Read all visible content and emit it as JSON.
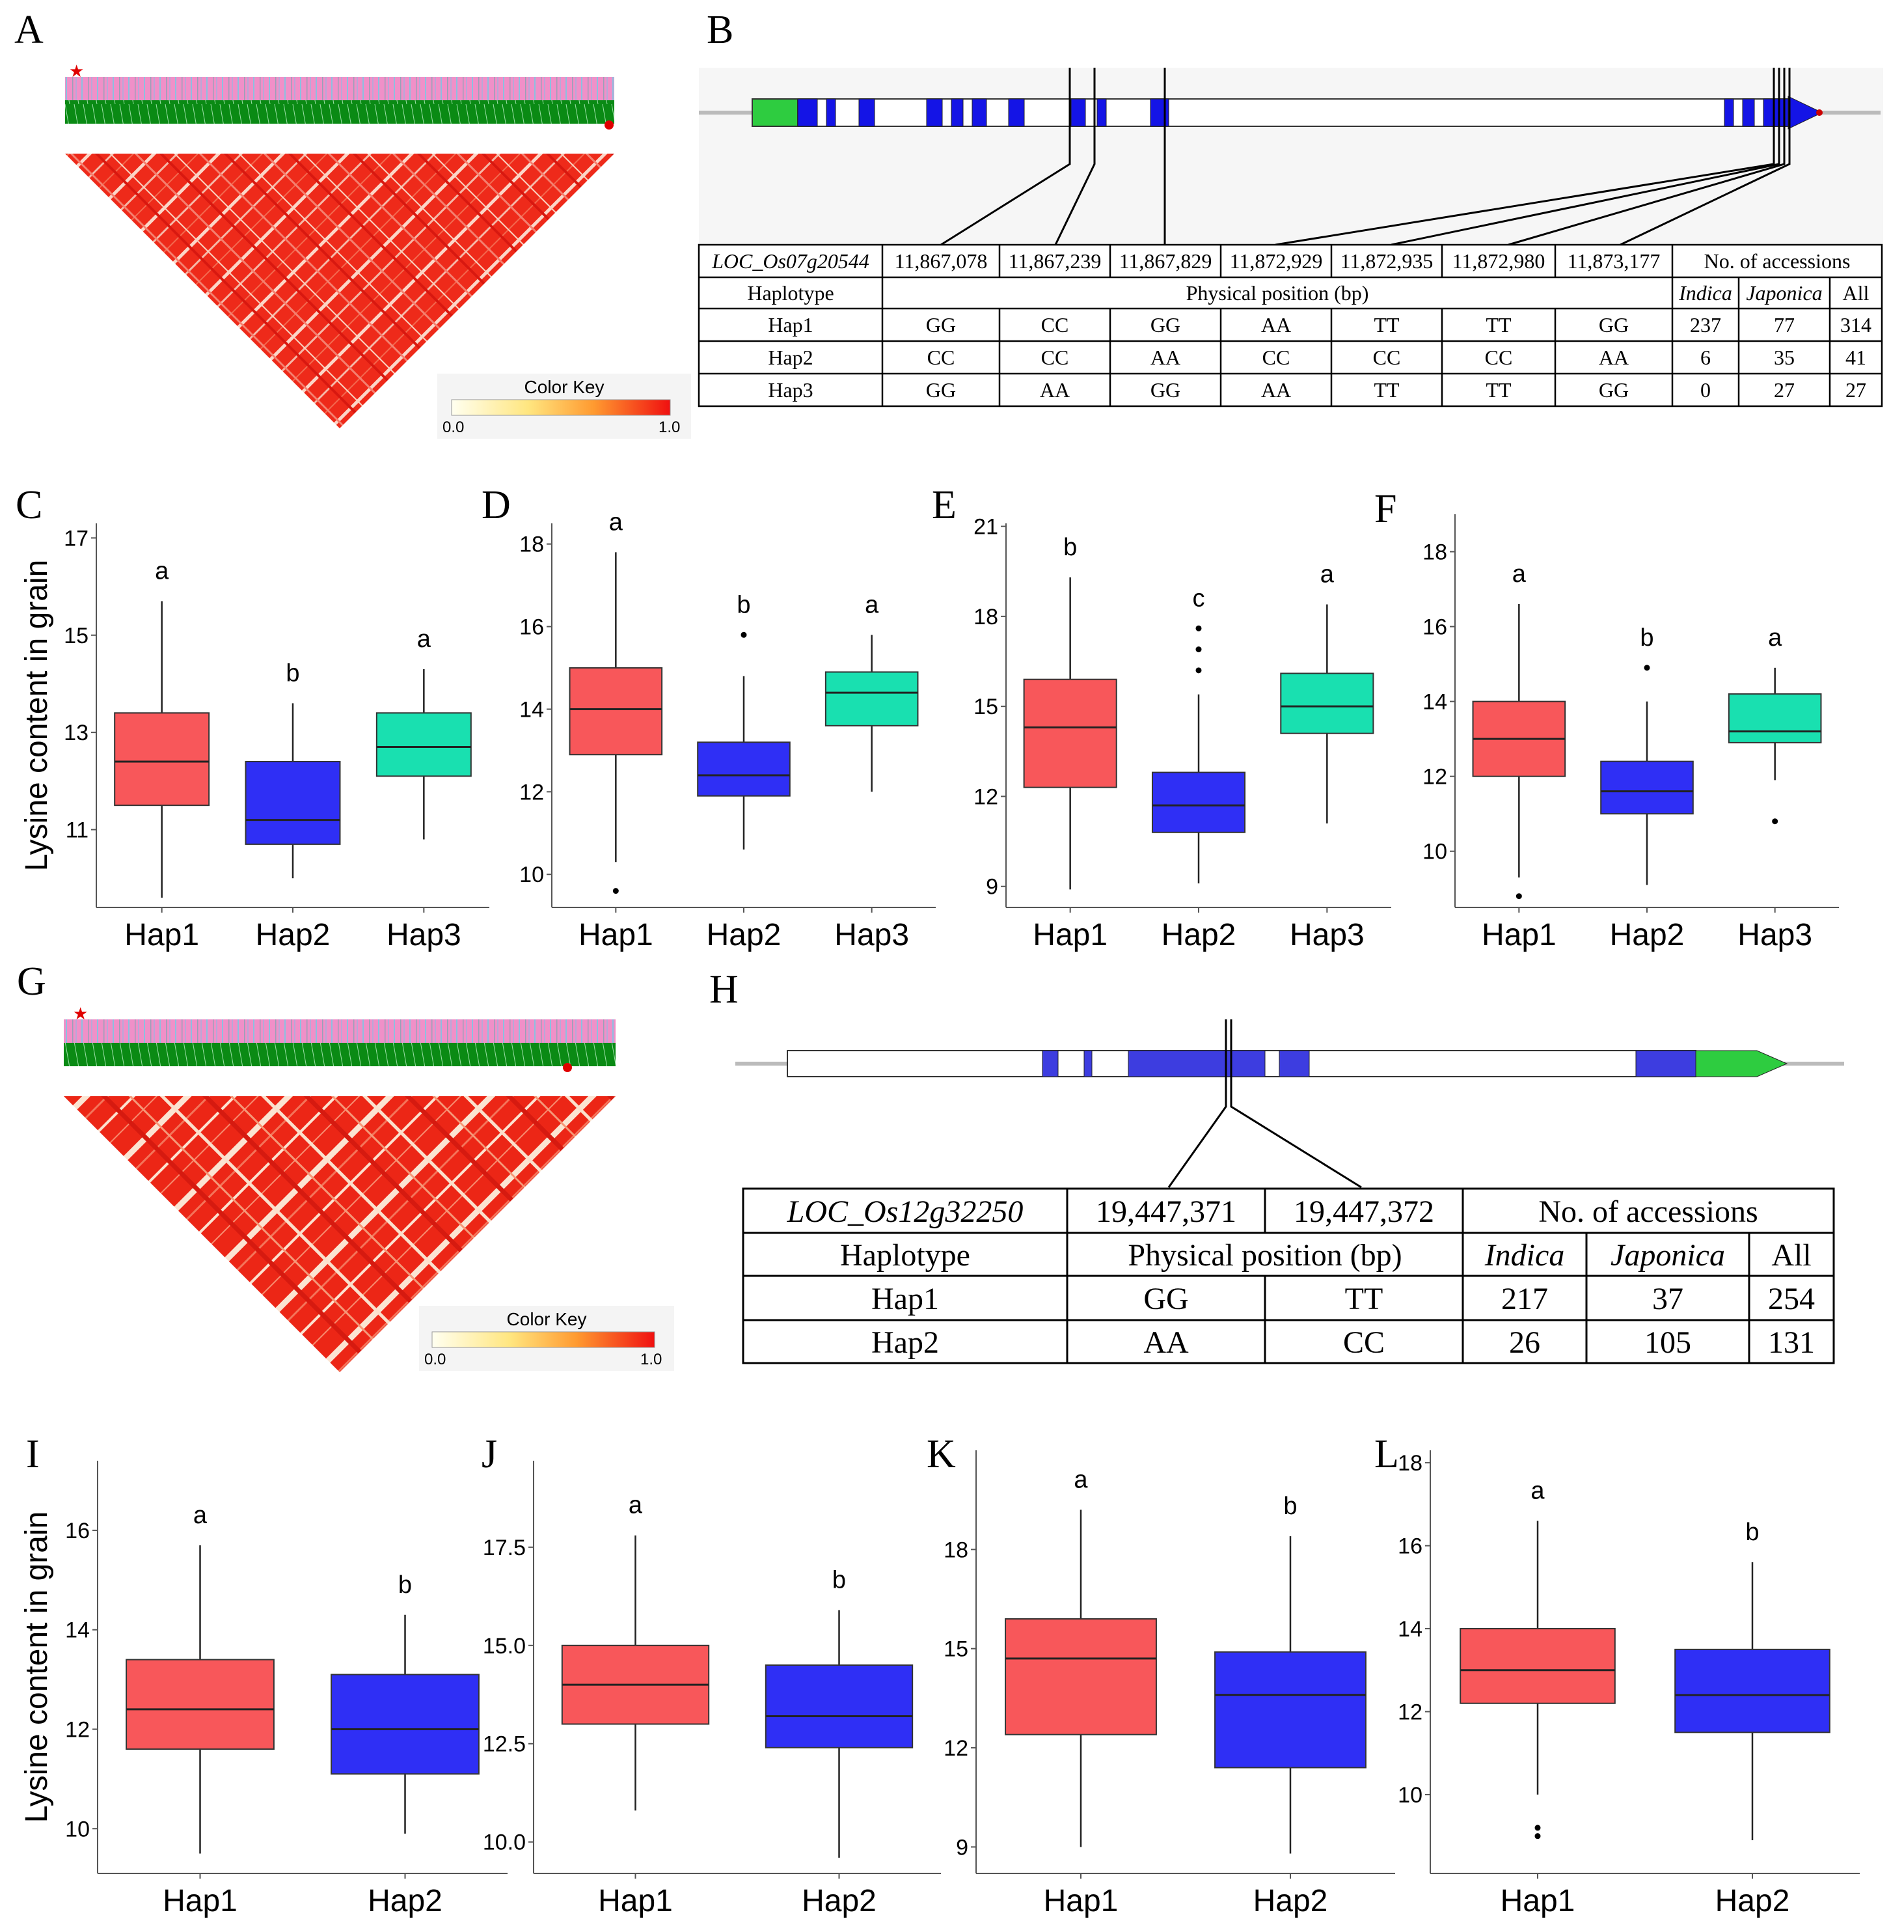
{
  "ylabel": "Lysine content in grain",
  "colors": {
    "hap1": "#F8575A",
    "hap2": "#2F2FF5",
    "hap3": "#19E0B0",
    "ld_red": "#F02818",
    "ld_pink": "#F08CC8",
    "ld_green": "#0A8A14",
    "exon_blue": "#1414E6",
    "utr_green": "#2ECC40"
  },
  "panel_A": {
    "label": "A",
    "color_key": {
      "title": "Color Key",
      "min": "0.0",
      "max": "1.0"
    }
  },
  "panel_G": {
    "label": "G",
    "color_key": {
      "title": "Color Key",
      "min": "0.0",
      "max": "1.0"
    }
  },
  "panel_B": {
    "label": "B",
    "gene": "LOC_Os07g20544",
    "positions": [
      "11,867,078",
      "11,867,239",
      "11,867,829",
      "11,872,929",
      "11,872,935",
      "11,872,980",
      "11,873,177"
    ],
    "header_haplotype": "Haplotype",
    "header_position": "Physical position (bp)",
    "header_accessions": "No. of accessions",
    "header_indica": "Indica",
    "header_japonica": "Japonica",
    "header_all": "All",
    "rows": [
      {
        "hap": "Hap1",
        "alleles": [
          "GG",
          "CC",
          "GG",
          "AA",
          "TT",
          "TT",
          "GG"
        ],
        "indica": "237",
        "japonica": "77",
        "all": "314"
      },
      {
        "hap": "Hap2",
        "alleles": [
          "CC",
          "CC",
          "AA",
          "CC",
          "CC",
          "CC",
          "AA"
        ],
        "indica": "6",
        "japonica": "35",
        "all": "41"
      },
      {
        "hap": "Hap3",
        "alleles": [
          "GG",
          "AA",
          "GG",
          "AA",
          "TT",
          "TT",
          "GG"
        ],
        "indica": "0",
        "japonica": "27",
        "all": "27"
      }
    ]
  },
  "panel_H": {
    "label": "H",
    "gene": "LOC_Os12g32250",
    "positions": [
      "19,447,371",
      "19,447,372"
    ],
    "header_haplotype": "Haplotype",
    "header_position": "Physical position (bp)",
    "header_accessions": "No. of accessions",
    "header_indica": "Indica",
    "header_japonica": "Japonica",
    "header_all": "All",
    "rows": [
      {
        "hap": "Hap1",
        "alleles": [
          "GG",
          "TT"
        ],
        "indica": "217",
        "japonica": "37",
        "all": "254"
      },
      {
        "hap": "Hap2",
        "alleles": [
          "AA",
          "CC"
        ],
        "indica": "26",
        "japonica": "105",
        "all": "131"
      }
    ]
  },
  "chart_data": [
    {
      "panel": "C",
      "type": "boxplot",
      "ylabel": "Lysine content in grain",
      "categories": [
        "Hap1",
        "Hap2",
        "Hap3"
      ],
      "yticks": [
        "11",
        "13",
        "15",
        "17"
      ],
      "ylim": [
        9.4,
        17.3
      ],
      "boxes": [
        {
          "name": "Hap1",
          "min": 9.6,
          "q1": 11.5,
          "median": 12.4,
          "q3": 13.4,
          "max": 15.7,
          "outliers": [],
          "sig": "a"
        },
        {
          "name": "Hap2",
          "min": 10.0,
          "q1": 10.7,
          "median": 11.2,
          "q3": 12.4,
          "max": 13.6,
          "outliers": [],
          "sig": "b"
        },
        {
          "name": "Hap3",
          "min": 10.8,
          "q1": 12.1,
          "median": 12.7,
          "q3": 13.4,
          "max": 14.3,
          "outliers": [],
          "sig": "a"
        }
      ]
    },
    {
      "panel": "D",
      "type": "boxplot",
      "categories": [
        "Hap1",
        "Hap2",
        "Hap3"
      ],
      "yticks": [
        "10",
        "12",
        "14",
        "16",
        "18"
      ],
      "ylim": [
        9.2,
        18.5
      ],
      "boxes": [
        {
          "name": "Hap1",
          "min": 10.3,
          "q1": 12.9,
          "median": 14.0,
          "q3": 15.0,
          "max": 17.8,
          "outliers": [
            9.6
          ],
          "sig": "a"
        },
        {
          "name": "Hap2",
          "min": 10.6,
          "q1": 11.9,
          "median": 12.4,
          "q3": 13.2,
          "max": 14.8,
          "outliers": [
            15.8
          ],
          "sig": "b"
        },
        {
          "name": "Hap3",
          "min": 12.0,
          "q1": 13.6,
          "median": 14.4,
          "q3": 14.9,
          "max": 15.8,
          "outliers": [],
          "sig": "a"
        }
      ]
    },
    {
      "panel": "E",
      "type": "boxplot",
      "categories": [
        "Hap1",
        "Hap2",
        "Hap3"
      ],
      "yticks": [
        "9",
        "12",
        "15",
        "18",
        "21"
      ],
      "ylim": [
        8.3,
        21.1
      ],
      "boxes": [
        {
          "name": "Hap1",
          "min": 8.9,
          "q1": 12.3,
          "median": 14.3,
          "q3": 15.9,
          "max": 19.3,
          "outliers": [],
          "sig": "b"
        },
        {
          "name": "Hap2",
          "min": 9.1,
          "q1": 10.8,
          "median": 11.7,
          "q3": 12.8,
          "max": 15.4,
          "outliers": [
            16.2,
            16.9,
            17.6
          ],
          "sig": "c"
        },
        {
          "name": "Hap3",
          "min": 11.1,
          "q1": 14.1,
          "median": 15.0,
          "q3": 16.1,
          "max": 18.4,
          "outliers": [],
          "sig": "a"
        }
      ]
    },
    {
      "panel": "F",
      "type": "boxplot",
      "categories": [
        "Hap1",
        "Hap2",
        "Hap3"
      ],
      "yticks": [
        "10",
        "12",
        "14",
        "16",
        "18"
      ],
      "ylim": [
        8.5,
        19.0
      ],
      "boxes": [
        {
          "name": "Hap1",
          "min": 9.3,
          "q1": 12.0,
          "median": 13.0,
          "q3": 14.0,
          "max": 16.6,
          "outliers": [
            8.8
          ],
          "sig": "a"
        },
        {
          "name": "Hap2",
          "min": 9.1,
          "q1": 11.0,
          "median": 11.6,
          "q3": 12.4,
          "max": 14.0,
          "outliers": [
            14.9
          ],
          "sig": "b"
        },
        {
          "name": "Hap3",
          "min": 11.9,
          "q1": 12.9,
          "median": 13.2,
          "q3": 14.2,
          "max": 14.9,
          "outliers": [
            10.8
          ],
          "sig": "a"
        }
      ]
    },
    {
      "panel": "I",
      "type": "boxplot",
      "ylabel": "Lysine content in grain",
      "categories": [
        "Hap1",
        "Hap2"
      ],
      "yticks": [
        "10",
        "12",
        "14",
        "16"
      ],
      "ylim": [
        9.1,
        17.4
      ],
      "boxes": [
        {
          "name": "Hap1",
          "min": 9.5,
          "q1": 11.6,
          "median": 12.4,
          "q3": 13.4,
          "max": 15.7,
          "outliers": [],
          "sig": "a"
        },
        {
          "name": "Hap2",
          "min": 9.9,
          "q1": 11.1,
          "median": 12.0,
          "q3": 13.1,
          "max": 14.3,
          "outliers": [],
          "sig": "b"
        }
      ]
    },
    {
      "panel": "J",
      "type": "boxplot",
      "categories": [
        "Hap1",
        "Hap2"
      ],
      "yticks": [
        "10.0",
        "12.5",
        "15.0",
        "17.5"
      ],
      "ylim": [
        9.2,
        19.7
      ],
      "boxes": [
        {
          "name": "Hap1",
          "min": 10.8,
          "q1": 13.0,
          "median": 14.0,
          "q3": 15.0,
          "max": 17.8,
          "outliers": [],
          "sig": "a"
        },
        {
          "name": "Hap2",
          "min": 9.6,
          "q1": 12.4,
          "median": 13.2,
          "q3": 14.5,
          "max": 15.9,
          "outliers": [],
          "sig": "b"
        }
      ]
    },
    {
      "panel": "K",
      "type": "boxplot",
      "categories": [
        "Hap1",
        "Hap2"
      ],
      "yticks": [
        "9",
        "12",
        "15",
        "18"
      ],
      "ylim": [
        8.2,
        21.0
      ],
      "boxes": [
        {
          "name": "Hap1",
          "min": 9.0,
          "q1": 12.4,
          "median": 14.7,
          "q3": 15.9,
          "max": 19.2,
          "outliers": [],
          "sig": "a"
        },
        {
          "name": "Hap2",
          "min": 8.8,
          "q1": 11.4,
          "median": 13.6,
          "q3": 14.9,
          "max": 18.4,
          "outliers": [],
          "sig": "b"
        }
      ]
    },
    {
      "panel": "L",
      "type": "boxplot",
      "categories": [
        "Hap1",
        "Hap2"
      ],
      "yticks": [
        "10",
        "12",
        "14",
        "16",
        "18"
      ],
      "ylim": [
        8.1,
        18.3
      ],
      "boxes": [
        {
          "name": "Hap1",
          "min": 10.0,
          "q1": 12.2,
          "median": 13.0,
          "q3": 14.0,
          "max": 16.6,
          "outliers": [
            9.0,
            9.2
          ],
          "sig": "a"
        },
        {
          "name": "Hap2",
          "min": 8.9,
          "q1": 11.5,
          "median": 12.4,
          "q3": 13.5,
          "max": 15.6,
          "outliers": [],
          "sig": "b"
        }
      ]
    }
  ]
}
